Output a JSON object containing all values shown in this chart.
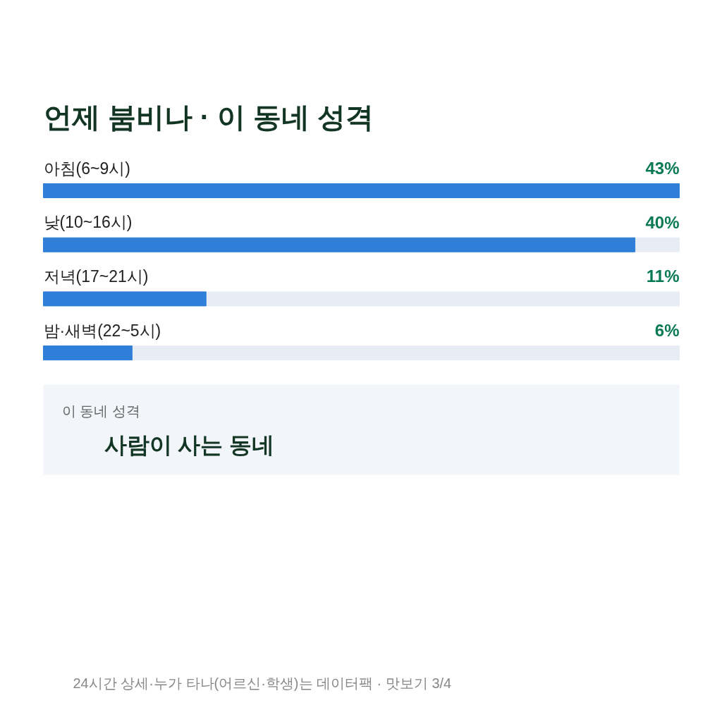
{
  "chart_data": {
    "type": "bar",
    "orientation": "horizontal",
    "title": "언제 붐비나 · 이 동네 성격",
    "categories": [
      "아침(6~9시)",
      "낮(10~16시)",
      "저녁(17~21시)",
      "밤·새벽(22~5시)"
    ],
    "values": [
      43,
      40,
      11,
      6
    ],
    "value_labels": [
      "43%",
      "40%",
      "11%",
      "6%"
    ],
    "color": "#2f7ed8",
    "annotations": [
      "이 동네 성격",
      "사람이 사는 동네",
      "24시간 상세·누가 타나(어르신·학생)는 데이터팩 · 맛보기 3/4"
    ]
  }
}
